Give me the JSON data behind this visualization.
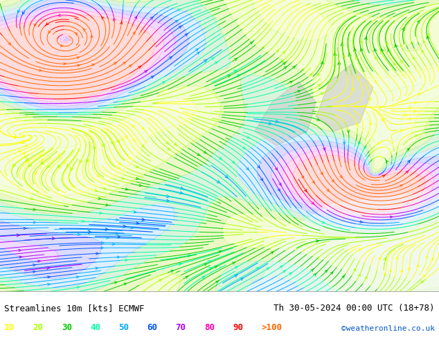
{
  "title_left": "Streamlines 10m [kts] ECMWF",
  "title_right": "Th 30-05-2024 00:00 UTC (18+78)",
  "credit": "©weatheronline.co.uk",
  "legend_labels": [
    "10",
    "20",
    "30",
    "40",
    "50",
    "60",
    "70",
    "80",
    "90",
    ">100"
  ],
  "legend_colors": [
    "#ffff00",
    "#aaff00",
    "#00cc00",
    "#00ffaa",
    "#00aaff",
    "#0055ff",
    "#aa00ff",
    "#ff00aa",
    "#ff0000",
    "#ff6600"
  ],
  "bg_color": "#d4f5a0",
  "land_color": "#d4f5a0",
  "sea_color": "#ffffff",
  "fig_width": 6.34,
  "fig_height": 4.9,
  "dpi": 100,
  "bottom_bar_color": "#ffffff",
  "bottom_text_color": "#000000",
  "bottom_bar_height": 0.14,
  "streamline_colors": [
    "#ffff00",
    "#aaff00",
    "#00cc00",
    "#00ffaa",
    "#00aaff",
    "#0055ff",
    "#aa00ff",
    "#ff00aa",
    "#ff0000",
    "#ff6600"
  ],
  "speed_thresholds": [
    10,
    20,
    30,
    40,
    50,
    60,
    70,
    80,
    90,
    100
  ]
}
